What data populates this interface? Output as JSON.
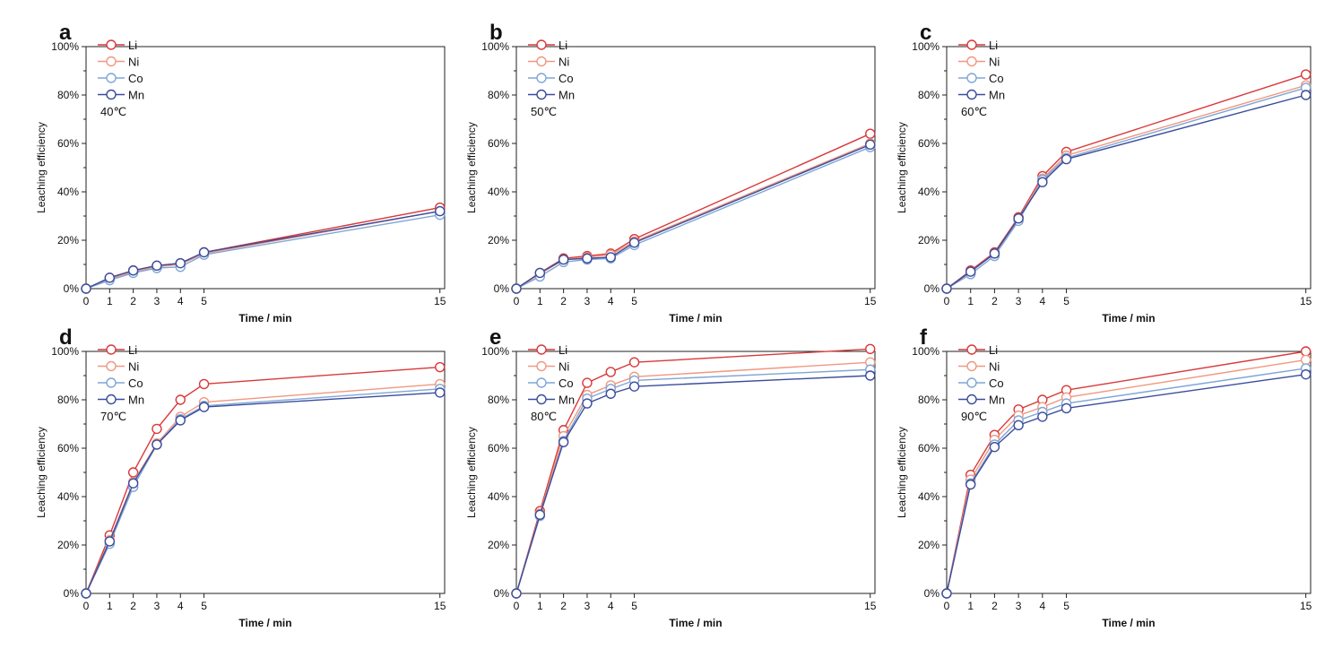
{
  "figure": {
    "colors": {
      "Li": "#d9393a",
      "Ni": "#f09880",
      "Co": "#7ea6d6",
      "Mn": "#3a4c9c"
    },
    "legend_placement": "top-left"
  },
  "chart_data": [
    {
      "type": "line",
      "panel_label": "a",
      "annotation": "40℃",
      "xlabel": "Time / min",
      "ylabel": "Leaching efficiency",
      "xlim": [
        0,
        15.2
      ],
      "ylim": [
        0,
        100
      ],
      "x": [
        0,
        1,
        2,
        3,
        4,
        5,
        15
      ],
      "xticks": [
        "0",
        "1",
        "2",
        "3",
        "4",
        "5",
        "15"
      ],
      "yticks": [
        "0%",
        "20%",
        "40%",
        "60%",
        "80%",
        "100%"
      ],
      "series": [
        {
          "name": "Li",
          "values": [
            0,
            4.5,
            7.5,
            9.5,
            10.5,
            15,
            33.5
          ]
        },
        {
          "name": "Ni",
          "values": [
            0,
            4,
            7,
            9,
            10,
            14.5,
            32
          ]
        },
        {
          "name": "Co",
          "values": [
            0,
            3.5,
            6.5,
            8.5,
            9,
            14,
            30.5
          ]
        },
        {
          "name": "Mn",
          "values": [
            0,
            4.5,
            7.5,
            9.5,
            10.5,
            15,
            32
          ]
        }
      ]
    },
    {
      "type": "line",
      "panel_label": "b",
      "annotation": "50℃",
      "xlabel": "Time / min",
      "ylabel": "Leaching efficiency",
      "xlim": [
        0,
        15.2
      ],
      "ylim": [
        0,
        100
      ],
      "x": [
        0,
        1,
        2,
        3,
        4,
        5,
        15
      ],
      "xticks": [
        "0",
        "1",
        "2",
        "3",
        "4",
        "5",
        "15"
      ],
      "yticks": [
        "0%",
        "20%",
        "40%",
        "60%",
        "80%",
        "100%"
      ],
      "series": [
        {
          "name": "Li",
          "values": [
            0,
            6.5,
            12.5,
            13.5,
            14.5,
            20.5,
            64
          ]
        },
        {
          "name": "Ni",
          "values": [
            0,
            6,
            12,
            13,
            14,
            19.5,
            60
          ]
        },
        {
          "name": "Co",
          "values": [
            0,
            5,
            11,
            12,
            12.5,
            18,
            58.5
          ]
        },
        {
          "name": "Mn",
          "values": [
            0,
            6.5,
            12,
            12.5,
            13,
            19,
            59.5
          ]
        }
      ]
    },
    {
      "type": "line",
      "panel_label": "c",
      "annotation": "60℃",
      "xlabel": "Time / min",
      "ylabel": "Leaching efficiency",
      "xlim": [
        0,
        15.2
      ],
      "ylim": [
        0,
        100
      ],
      "x": [
        0,
        1,
        2,
        3,
        4,
        5,
        15
      ],
      "xticks": [
        "0",
        "1",
        "2",
        "3",
        "4",
        "5",
        "15"
      ],
      "yticks": [
        "0%",
        "20%",
        "40%",
        "60%",
        "80%",
        "100%"
      ],
      "series": [
        {
          "name": "Li",
          "values": [
            0,
            7.5,
            15,
            29.5,
            46.5,
            56.5,
            88.5
          ]
        },
        {
          "name": "Ni",
          "values": [
            0,
            7,
            14.5,
            29,
            45.5,
            55,
            84
          ]
        },
        {
          "name": "Co",
          "values": [
            0,
            6,
            13.5,
            28,
            45,
            54,
            83
          ]
        },
        {
          "name": "Mn",
          "values": [
            0,
            7,
            14.5,
            29,
            44,
            53.5,
            80
          ]
        }
      ]
    },
    {
      "type": "line",
      "panel_label": "d",
      "annotation": "70℃",
      "xlabel": "Time / min",
      "ylabel": "Leaching efficiency",
      "xlim": [
        0,
        15.2
      ],
      "ylim": [
        0,
        100
      ],
      "x": [
        0,
        1,
        2,
        3,
        4,
        5,
        15
      ],
      "xticks": [
        "0",
        "1",
        "2",
        "3",
        "4",
        "5",
        "15"
      ],
      "yticks": [
        "0%",
        "20%",
        "40%",
        "60%",
        "80%",
        "100%"
      ],
      "series": [
        {
          "name": "Li",
          "values": [
            0,
            24,
            50,
            68,
            80,
            86.5,
            93.5
          ]
        },
        {
          "name": "Ni",
          "values": [
            0,
            22,
            46,
            62,
            73,
            79,
            86.5
          ]
        },
        {
          "name": "Co",
          "values": [
            0,
            20.5,
            44,
            61.5,
            72,
            77.5,
            84.5
          ]
        },
        {
          "name": "Mn",
          "values": [
            0,
            21.5,
            45.5,
            61.5,
            71.5,
            77,
            83
          ]
        }
      ]
    },
    {
      "type": "line",
      "panel_label": "e",
      "annotation": "80℃",
      "xlabel": "Time / min",
      "ylabel": "Leaching efficiency",
      "xlim": [
        0,
        15.2
      ],
      "ylim": [
        0,
        100
      ],
      "x": [
        0,
        1,
        2,
        3,
        4,
        5,
        15
      ],
      "xticks": [
        "0",
        "1",
        "2",
        "3",
        "4",
        "5",
        "15"
      ],
      "yticks": [
        "0%",
        "20%",
        "40%",
        "60%",
        "80%",
        "100%"
      ],
      "series": [
        {
          "name": "Li",
          "values": [
            0,
            34,
            67.5,
            87,
            91.5,
            95.5,
            101
          ]
        },
        {
          "name": "Ni",
          "values": [
            0,
            33,
            65,
            82,
            86,
            89.5,
            95.5
          ]
        },
        {
          "name": "Co",
          "values": [
            0,
            32,
            63,
            80.5,
            84.5,
            88,
            92.5
          ]
        },
        {
          "name": "Mn",
          "values": [
            0,
            32.5,
            62.5,
            78.5,
            82.5,
            85.5,
            90
          ]
        }
      ]
    },
    {
      "type": "line",
      "panel_label": "f",
      "annotation": "90℃",
      "xlabel": "Time / min",
      "ylabel": "Leaching efficiency",
      "xlim": [
        0,
        15.2
      ],
      "ylim": [
        0,
        100
      ],
      "x": [
        0,
        1,
        2,
        3,
        4,
        5,
        15
      ],
      "xticks": [
        "0",
        "1",
        "2",
        "3",
        "4",
        "5",
        "15"
      ],
      "yticks": [
        "0%",
        "20%",
        "40%",
        "60%",
        "80%",
        "100%"
      ],
      "series": [
        {
          "name": "Li",
          "values": [
            0,
            49,
            65.5,
            76,
            80,
            84,
            100
          ]
        },
        {
          "name": "Ni",
          "values": [
            0,
            47,
            63.5,
            73.5,
            77,
            81,
            96.5
          ]
        },
        {
          "name": "Co",
          "values": [
            0,
            45.5,
            61.5,
            71.5,
            75,
            78.5,
            93
          ]
        },
        {
          "name": "Mn",
          "values": [
            0,
            45,
            60.5,
            69.5,
            73,
            76.5,
            90.5
          ]
        }
      ]
    }
  ]
}
